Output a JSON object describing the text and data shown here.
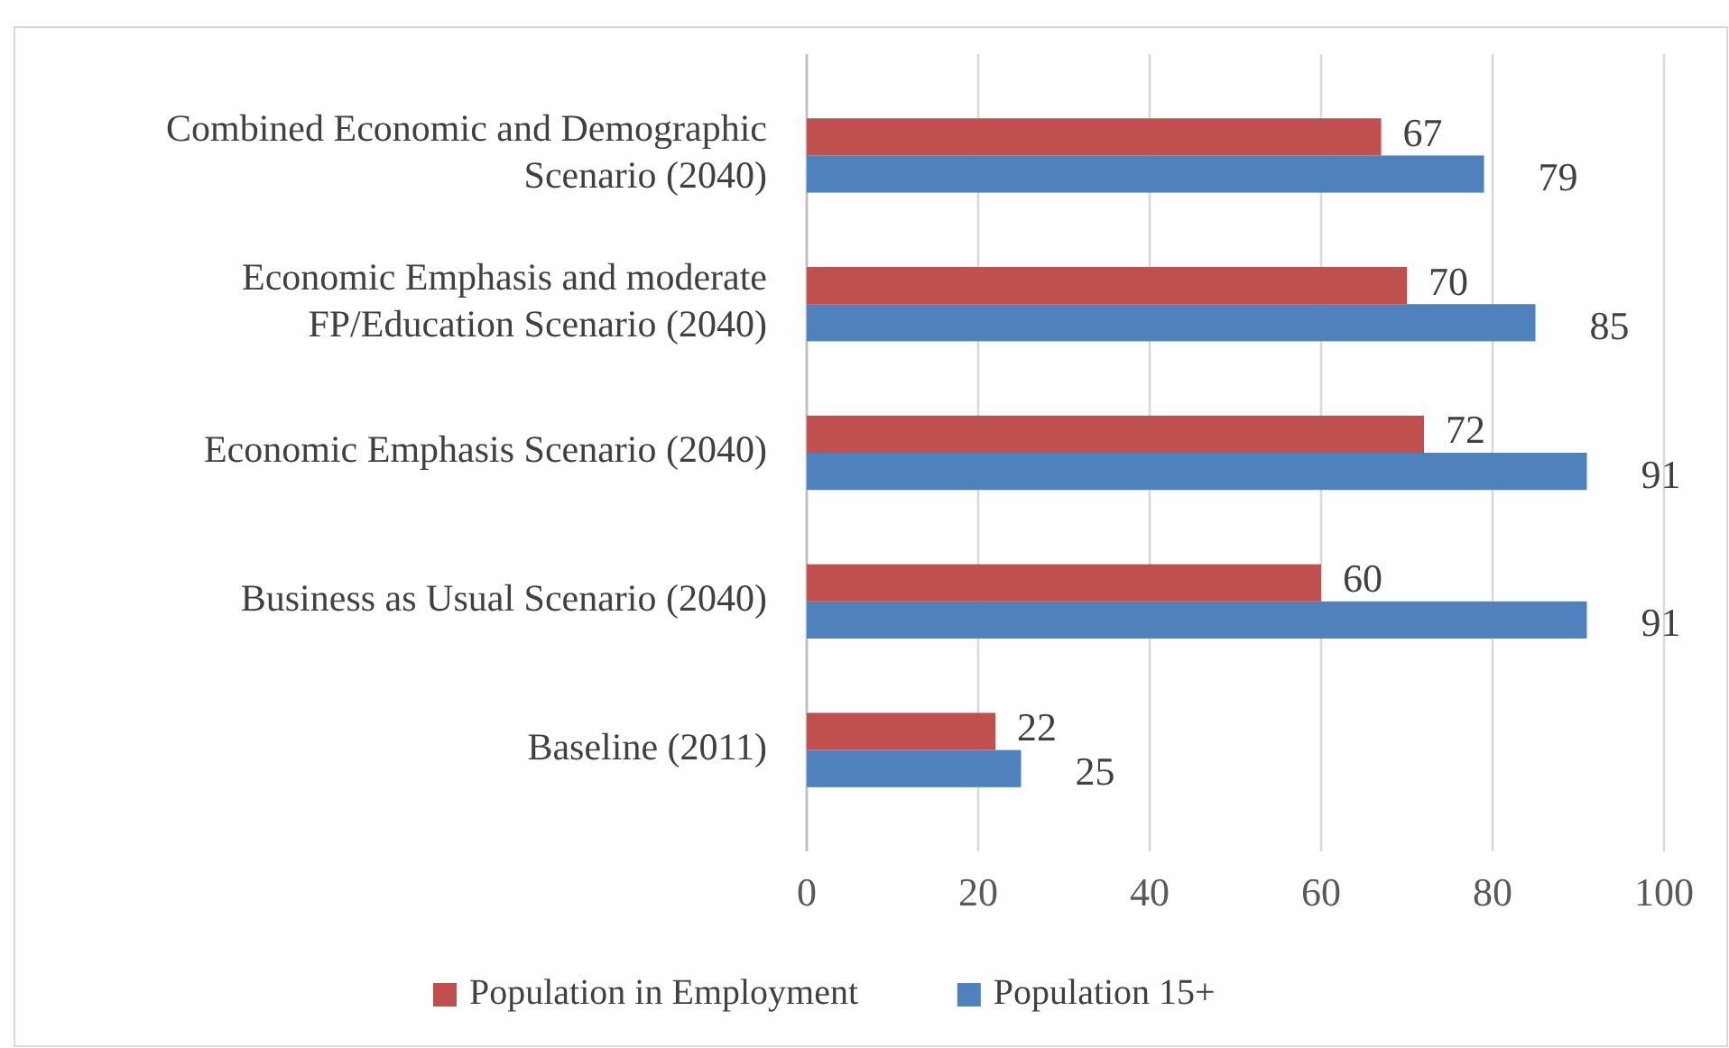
{
  "chart_data": {
    "type": "bar",
    "orientation": "horizontal",
    "categories": [
      "Combined Economic and Demographic Scenario (2040)",
      "Economic Emphasis and moderate FP/Education Scenario (2040)",
      "Economic Emphasis Scenario (2040)",
      "Business as Usual Scenario (2040)",
      "Baseline (2011)"
    ],
    "series": [
      {
        "name": "Population in Employment",
        "color": "#c0504d",
        "values": [
          67,
          70,
          72,
          60,
          22
        ]
      },
      {
        "name": "Population 15+",
        "color": "#4f81bd",
        "values": [
          79,
          85,
          91,
          91,
          25
        ]
      }
    ],
    "xlim": [
      0,
      100
    ],
    "xticks": [
      0,
      20,
      40,
      60,
      80,
      100
    ],
    "grid": "x",
    "legend": "bottom",
    "data_labels": true
  }
}
